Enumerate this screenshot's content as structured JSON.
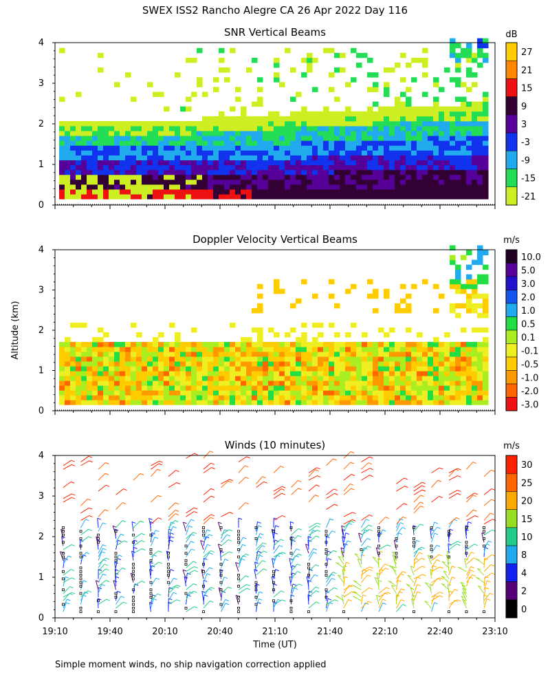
{
  "figure": {
    "title": "SWEX ISS2 Rancho Alegre CA  26 Apr 2022 Day 116",
    "ylabel": "Altitude (km)",
    "xlabel": "Time (UT)",
    "footnote": "Simple moment winds, no ship navigation correction applied"
  },
  "chart_data": [
    {
      "type": "heatmap",
      "title": "SNR Vertical Beams",
      "units": "dB",
      "x_ticks": [
        "19:10",
        "19:40",
        "20:10",
        "20:40",
        "21:10",
        "21:40",
        "22:10",
        "22:40",
        "23:10"
      ],
      "y_ticks": [
        "0",
        "1",
        "2",
        "3",
        "4"
      ],
      "ylim": [
        0,
        4
      ],
      "colorbar": [
        "27",
        "21",
        "15",
        "9",
        "3",
        "-3",
        "-9",
        "-15",
        "-21"
      ],
      "colors": [
        "#ffcc00",
        "#ff8800",
        "#ee1111",
        "#330033",
        "#550099",
        "#1133ee",
        "#22aaee",
        "#22dd55",
        "#ccee22"
      ]
    },
    {
      "type": "heatmap",
      "title": "Doppler Velocity Vertical Beams",
      "units": "m/s",
      "x_ticks": [
        "19:10",
        "19:40",
        "20:10",
        "20:40",
        "21:10",
        "21:40",
        "22:10",
        "22:40",
        "23:10"
      ],
      "y_ticks": [
        "0",
        "1",
        "2",
        "3",
        "4"
      ],
      "ylim": [
        0,
        4
      ],
      "colorbar": [
        "10.0",
        "5.0",
        "3.0",
        "2.0",
        "1.0",
        "0.5",
        "0.1",
        "-0.1",
        "-0.5",
        "-1.0",
        "-2.0",
        "-3.0"
      ],
      "colors": [
        "#220022",
        "#550099",
        "#2211cc",
        "#1155ee",
        "#22aaee",
        "#22dd44",
        "#aaee22",
        "#eeee22",
        "#ffcc00",
        "#ff9900",
        "#ff6600",
        "#ee1111"
      ]
    },
    {
      "type": "wind_barbs",
      "title": "Winds (10 minutes)",
      "units": "m/s",
      "x_ticks": [
        "19:10",
        "19:40",
        "20:10",
        "20:40",
        "21:10",
        "21:40",
        "22:10",
        "22:40",
        "23:10"
      ],
      "y_ticks": [
        "0",
        "1",
        "2",
        "3",
        "4"
      ],
      "ylim": [
        0,
        4
      ],
      "colorbar": [
        "30",
        "25",
        "20",
        "15",
        "10",
        "8",
        "4",
        "2",
        "0"
      ],
      "colors": [
        "#ff2200",
        "#ff6600",
        "#ffaa00",
        "#99dd22",
        "#22cc88",
        "#22aaee",
        "#1122ee",
        "#550077",
        "#000000"
      ]
    }
  ]
}
